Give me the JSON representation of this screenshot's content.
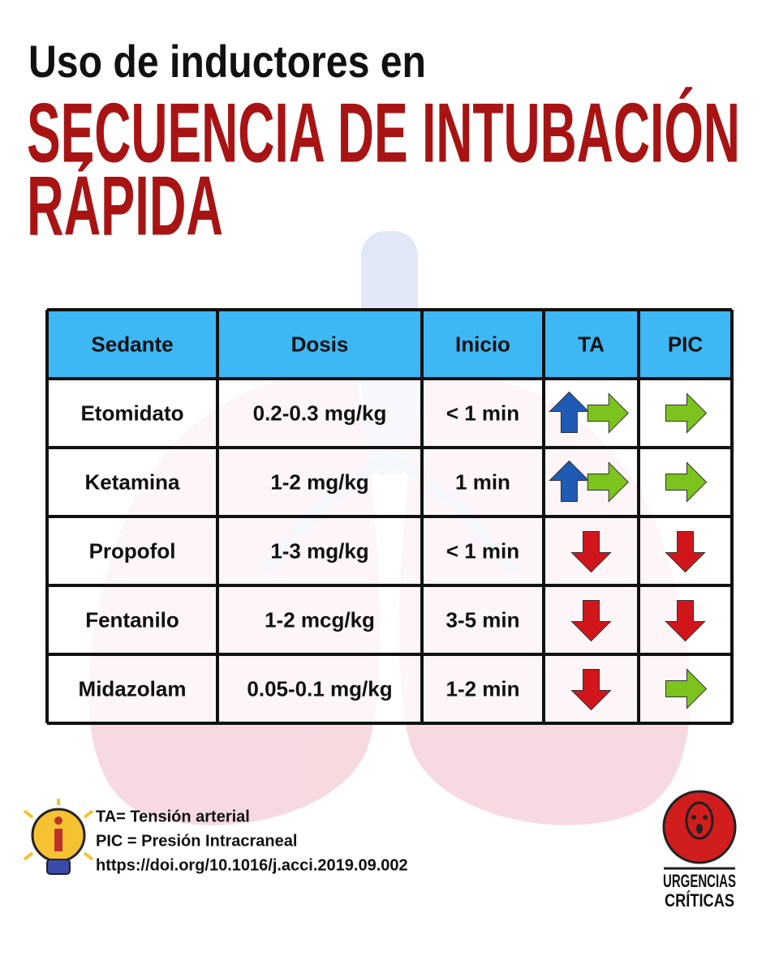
{
  "header": {
    "subtitle": "Uso de inductores en",
    "title_lines": [
      "SECUENCIA DE INTUBACIÓN",
      "RÁPIDA"
    ]
  },
  "table": {
    "columns": [
      "Sedante",
      "Dosis",
      "Inicio",
      "TA",
      "PIC"
    ],
    "rows": [
      [
        "Etomidato",
        "0.2-0.3 mg/kg",
        "< 1 min"
      ],
      [
        "Ketamina",
        "1-2 mg/kg",
        "1 min"
      ],
      [
        "Propofol",
        "1-3 mg/kg",
        "< 1 min"
      ],
      [
        "Fentanilo",
        "1-2 mcg/kg",
        "3-5 min"
      ],
      [
        "Midazolam",
        "0.05-0.1 mg/kg",
        "1-2 min"
      ]
    ],
    "ta_arrows": [
      [
        "up",
        "right"
      ],
      [
        "up",
        "right"
      ],
      [
        "down"
      ],
      [
        "down"
      ],
      [
        "down"
      ]
    ],
    "pic_arrows": [
      [
        "right"
      ],
      [
        "right"
      ],
      [
        "down"
      ],
      [
        "down"
      ],
      [
        "right"
      ]
    ]
  },
  "footer": {
    "notes": [
      "TA= Tensión arterial",
      "PIC = Presión Intracraneal",
      "https://doi.org/10.1016/j.acci.2019.09.002"
    ],
    "logo": [
      "URGENCIAS",
      "CRÍTICAS"
    ]
  }
}
